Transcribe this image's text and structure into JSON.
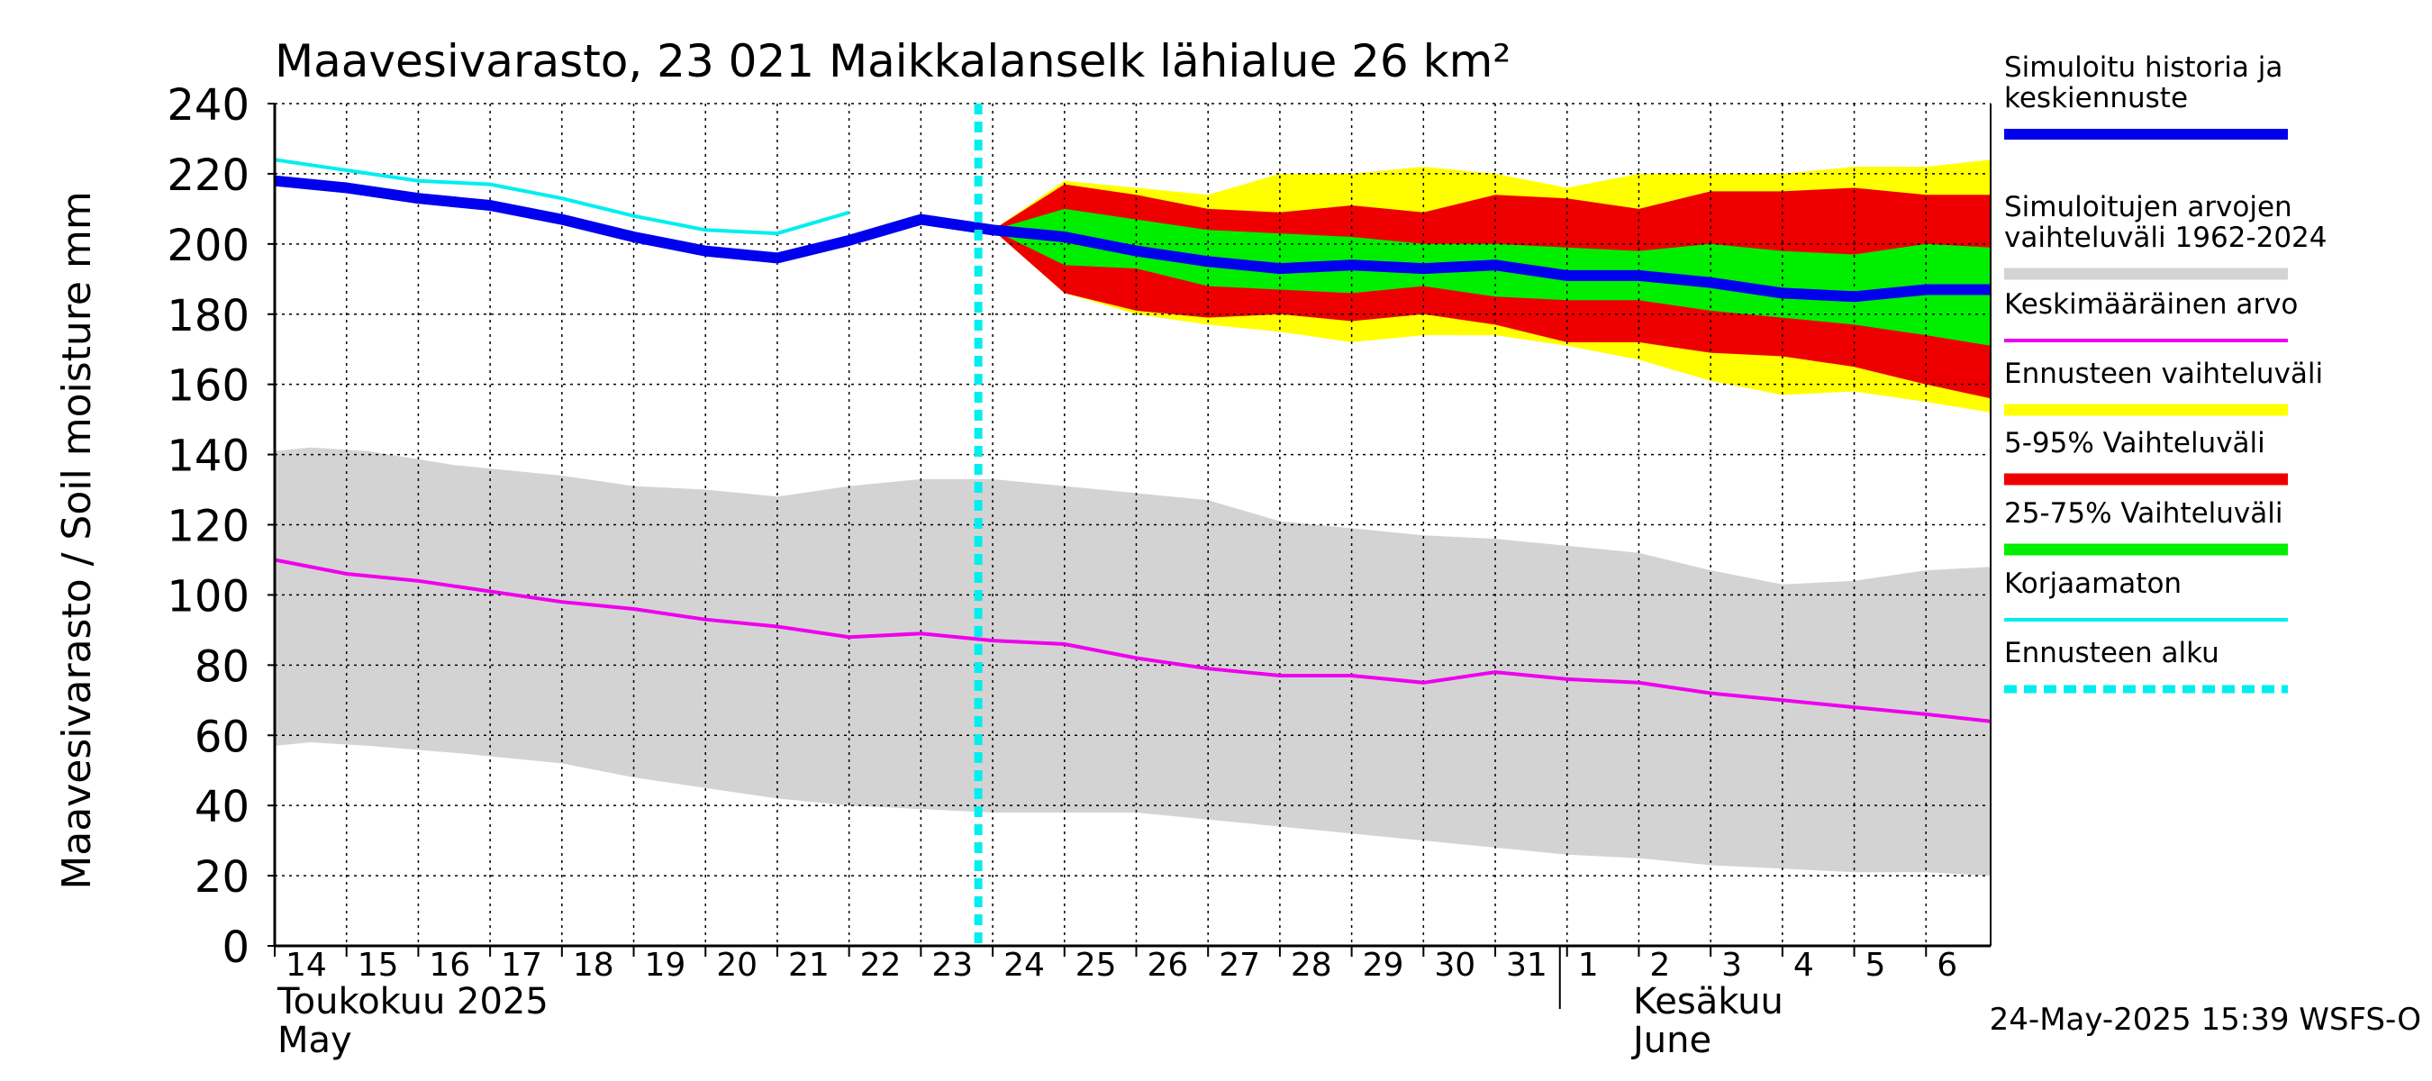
{
  "chart_data": {
    "type": "area",
    "title": "Maavesivarasto, 23 021 Maikkalanselk lähialue 26 km²",
    "ylabel": "Maavesivarasto / Soil moisture   mm",
    "ylim": [
      0,
      240
    ],
    "yticks": [
      0,
      20,
      40,
      60,
      80,
      100,
      120,
      140,
      160,
      180,
      200,
      220,
      240
    ],
    "grid": true,
    "x_day_labels": [
      "14",
      "15",
      "16",
      "17",
      "18",
      "19",
      "20",
      "21",
      "22",
      "23",
      "24",
      "25",
      "26",
      "27",
      "28",
      "29",
      "30",
      "31",
      "1",
      "2",
      "3",
      "4",
      "5",
      "6"
    ],
    "month_labels": {
      "may_fi": "Toukokuu  2025",
      "may_en": "May",
      "june_fi": "Kesäkuu",
      "june_en": "June"
    },
    "timestamp": "24-May-2025 15:39 WSFS-O",
    "forecast_start_day": 23.8,
    "legend": [
      {
        "label": "Simuloitu historia ja keskiennuste",
        "lines": [
          "Simuloitu historia ja",
          "keskiennuste"
        ],
        "color": "#0000ee",
        "style": "thick"
      },
      {
        "label": "Simuloitujen arvojen vaihteluväli 1962-2024",
        "lines": [
          "Simuloitujen arvojen",
          "vaihteluväli 1962-2024"
        ],
        "color": "#d3d3d3",
        "style": "band"
      },
      {
        "label": "Keskimääräinen arvo",
        "lines": [
          "Keskimääräinen arvo"
        ],
        "color": "#ee00ee",
        "style": "thin"
      },
      {
        "label": "Ennusteen vaihteluväli",
        "lines": [
          "Ennusteen vaihteluväli"
        ],
        "color": "#ffff00",
        "style": "band"
      },
      {
        "label": "5-95% Vaihteluväli",
        "lines": [
          "5-95% Vaihteluväli"
        ],
        "color": "#ee0000",
        "style": "band"
      },
      {
        "label": "25-75% Vaihteluväli",
        "lines": [
          "25-75% Vaihteluväli"
        ],
        "color": "#00ee00",
        "style": "band"
      },
      {
        "label": "Korjaamaton",
        "lines": [
          "Korjaamaton"
        ],
        "color": "#00eeee",
        "style": "thin"
      },
      {
        "label": "Ennusteen alku",
        "lines": [
          "Ennusteen alku"
        ],
        "color": "#00eeee",
        "style": "dashed"
      }
    ],
    "series": {
      "historical_range": {
        "x": [
          14,
          14.5,
          15.3,
          16.5,
          18,
          19,
          20,
          21,
          22,
          23,
          24,
          25,
          26,
          27,
          28,
          29,
          30,
          31,
          32,
          33,
          34,
          35,
          36,
          37,
          37.9
        ],
        "upper": [
          141,
          142,
          141,
          137,
          134,
          131,
          130,
          128,
          131,
          133,
          133,
          131,
          129,
          127,
          121,
          119,
          117,
          116,
          114,
          112,
          107,
          103,
          104,
          107,
          108
        ],
        "lower": [
          57,
          58,
          57,
          55,
          52,
          48,
          45,
          42,
          40,
          39,
          38,
          38,
          38,
          36,
          34,
          32,
          30,
          28,
          26,
          25,
          23,
          22,
          21,
          21,
          20
        ]
      },
      "mean": {
        "x": [
          14,
          15,
          16,
          17,
          18,
          19,
          20,
          21,
          22,
          23,
          24,
          25,
          26,
          27,
          28,
          29,
          30,
          31,
          32,
          33,
          34,
          35,
          36,
          37,
          37.9
        ],
        "y": [
          110,
          106,
          104,
          101,
          98,
          96,
          93,
          91,
          88,
          89,
          87,
          86,
          82,
          79,
          77,
          77,
          75,
          78,
          76,
          75,
          72,
          70,
          68,
          66,
          64
        ]
      },
      "forecast_range": {
        "x": [
          24,
          25,
          26,
          27,
          28,
          29,
          30,
          31,
          32,
          33,
          34,
          35,
          36,
          37,
          37.9
        ],
        "upper": [
          204,
          218,
          216,
          214,
          220,
          220,
          222,
          220,
          216,
          220,
          220,
          220,
          222,
          222,
          224
        ],
        "lower": [
          204,
          186,
          180,
          177,
          175,
          172,
          174,
          174,
          171,
          167,
          161,
          157,
          158,
          155,
          152
        ]
      },
      "p5_95": {
        "x": [
          24,
          25,
          26,
          27,
          28,
          29,
          30,
          31,
          32,
          33,
          34,
          35,
          36,
          37,
          37.9
        ],
        "upper": [
          204,
          217,
          214,
          210,
          209,
          211,
          209,
          214,
          213,
          210,
          215,
          215,
          216,
          214,
          214
        ],
        "lower": [
          204,
          186,
          181,
          179,
          180,
          178,
          180,
          177,
          172,
          172,
          169,
          168,
          165,
          160,
          156
        ]
      },
      "p25_75": {
        "x": [
          24,
          25,
          26,
          27,
          28,
          29,
          30,
          31,
          32,
          33,
          34,
          35,
          36,
          37,
          37.9
        ],
        "upper": [
          204,
          210,
          207,
          204,
          203,
          202,
          200,
          200,
          199,
          198,
          200,
          198,
          197,
          200,
          199
        ],
        "lower": [
          204,
          194,
          193,
          188,
          187,
          186,
          188,
          185,
          184,
          184,
          181,
          179,
          177,
          174,
          171
        ]
      },
      "simulated": {
        "x": [
          14,
          15,
          16,
          17,
          18,
          19,
          20,
          21,
          22,
          23,
          24,
          25,
          26,
          27,
          28,
          29,
          30,
          31,
          32,
          33,
          34,
          35,
          36,
          37,
          37.9
        ],
        "y": [
          218,
          216,
          213,
          211,
          207,
          202,
          198,
          196,
          201,
          207,
          204,
          202,
          198,
          195,
          193,
          194,
          193,
          194,
          191,
          191,
          189,
          186,
          185,
          187,
          187
        ]
      },
      "uncorrected": {
        "x": [
          14,
          15,
          16,
          17,
          18,
          19,
          20,
          21,
          22
        ],
        "y": [
          224,
          221,
          218,
          217,
          213,
          208,
          204,
          203,
          209
        ]
      }
    },
    "colors": {
      "historical_range": "#d3d3d3",
      "mean": "#ee00ee",
      "forecast_range": "#ffff00",
      "p5_95": "#ee0000",
      "p25_75": "#00ee00",
      "simulated": "#0000ee",
      "uncorrected": "#00eeee",
      "forecast_start": "#00eeee"
    }
  }
}
